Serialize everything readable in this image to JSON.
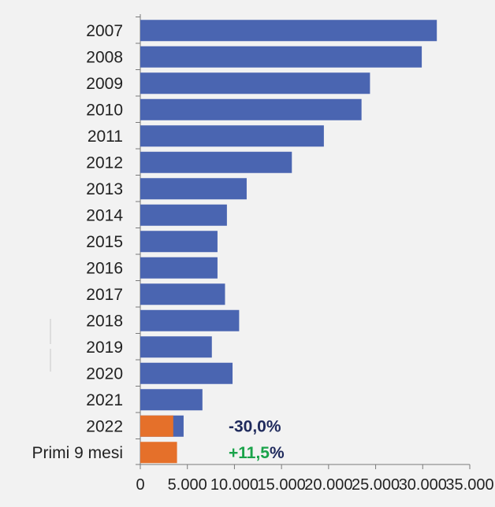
{
  "chart_data": {
    "type": "bar",
    "orientation": "horizontal",
    "stacked": "overlay",
    "title": "",
    "xlabel": "",
    "ylabel": "",
    "xlim": [
      0,
      35000
    ],
    "categories": [
      "2007",
      "2008",
      "2009",
      "2010",
      "2011",
      "2012",
      "2013",
      "2014",
      "2015",
      "2016",
      "2017",
      "2018",
      "2019",
      "2020",
      "2021",
      "2022",
      "Primi 9 mesi"
    ],
    "series": [
      {
        "color": "#4a65b1",
        "values": [
          31500,
          29900,
          24400,
          23500,
          19500,
          16100,
          11300,
          9200,
          8200,
          8200,
          9000,
          10500,
          7600,
          9800,
          6600,
          4600,
          null
        ]
      },
      {
        "color": "#e5702a",
        "values": [
          null,
          null,
          null,
          null,
          null,
          null,
          null,
          null,
          null,
          null,
          null,
          null,
          null,
          null,
          null,
          3500,
          3900
        ]
      }
    ],
    "x_ticks": [
      "0",
      "5.000",
      "10.000",
      "15.000",
      "20.000",
      "25.000",
      "30.000",
      "35.000"
    ],
    "x_tick_values": [
      0,
      5000,
      10000,
      15000,
      20000,
      25000,
      30000,
      35000
    ],
    "grid": false,
    "legend": "none",
    "annotations": [
      {
        "category": "2022",
        "text": "-30,0%",
        "color": "#1f2a5c"
      },
      {
        "category": "Primi 9 mesi",
        "text": "+11,5",
        "suffix": "%",
        "color": "#1aa34a",
        "suffix_color": "#1f2a5c"
      }
    ]
  }
}
